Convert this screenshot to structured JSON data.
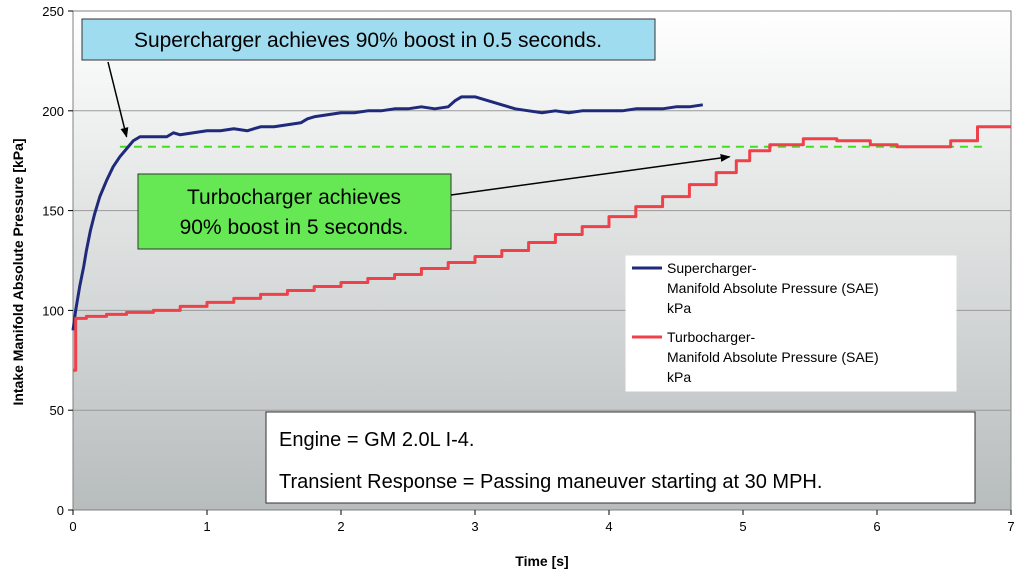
{
  "chart_data": {
    "type": "line",
    "xlabel": "Time [s]",
    "ylabel": "Intake Manifold Absolute Pressure [kPa]",
    "xlim": [
      0,
      7
    ],
    "ylim": [
      0,
      250
    ],
    "xticks": [
      0,
      1,
      2,
      3,
      4,
      5,
      6,
      7
    ],
    "yticks": [
      0,
      50,
      100,
      150,
      200,
      250
    ],
    "grid": "horizontal",
    "background": "vertical gradient light gray",
    "series": [
      {
        "name_lines": [
          "Supercharger-",
          "Manifold Absolute Pressure (SAE)",
          "kPa"
        ],
        "color": "#1f2a7a",
        "step": false,
        "points": [
          [
            0.0,
            90
          ],
          [
            0.02,
            100
          ],
          [
            0.05,
            112
          ],
          [
            0.08,
            122
          ],
          [
            0.1,
            130
          ],
          [
            0.13,
            140
          ],
          [
            0.16,
            148
          ],
          [
            0.2,
            157
          ],
          [
            0.25,
            165
          ],
          [
            0.3,
            172
          ],
          [
            0.35,
            177
          ],
          [
            0.4,
            181
          ],
          [
            0.45,
            185
          ],
          [
            0.5,
            187
          ],
          [
            0.6,
            187
          ],
          [
            0.7,
            187
          ],
          [
            0.75,
            189
          ],
          [
            0.8,
            188
          ],
          [
            0.9,
            189
          ],
          [
            1.0,
            190
          ],
          [
            1.1,
            190
          ],
          [
            1.2,
            191
          ],
          [
            1.3,
            190
          ],
          [
            1.4,
            192
          ],
          [
            1.5,
            192
          ],
          [
            1.6,
            193
          ],
          [
            1.7,
            194
          ],
          [
            1.75,
            196
          ],
          [
            1.8,
            197
          ],
          [
            1.9,
            198
          ],
          [
            2.0,
            199
          ],
          [
            2.1,
            199
          ],
          [
            2.2,
            200
          ],
          [
            2.3,
            200
          ],
          [
            2.4,
            201
          ],
          [
            2.5,
            201
          ],
          [
            2.6,
            202
          ],
          [
            2.7,
            201
          ],
          [
            2.8,
            202
          ],
          [
            2.85,
            205
          ],
          [
            2.9,
            207
          ],
          [
            3.0,
            207
          ],
          [
            3.1,
            205
          ],
          [
            3.2,
            203
          ],
          [
            3.3,
            201
          ],
          [
            3.4,
            200
          ],
          [
            3.5,
            199
          ],
          [
            3.6,
            200
          ],
          [
            3.7,
            199
          ],
          [
            3.8,
            200
          ],
          [
            3.9,
            200
          ],
          [
            4.0,
            200
          ],
          [
            4.1,
            200
          ],
          [
            4.2,
            201
          ],
          [
            4.3,
            201
          ],
          [
            4.4,
            201
          ],
          [
            4.5,
            202
          ],
          [
            4.6,
            202
          ],
          [
            4.7,
            203
          ]
        ]
      },
      {
        "name_lines": [
          "Turbocharger-",
          "Manifold Absolute Pressure (SAE)",
          "kPa"
        ],
        "color": "#f0404a",
        "step": true,
        "points": [
          [
            0.0,
            70
          ],
          [
            0.02,
            96
          ],
          [
            0.1,
            97
          ],
          [
            0.25,
            98
          ],
          [
            0.4,
            99
          ],
          [
            0.6,
            100
          ],
          [
            0.8,
            102
          ],
          [
            1.0,
            104
          ],
          [
            1.2,
            106
          ],
          [
            1.4,
            108
          ],
          [
            1.6,
            110
          ],
          [
            1.8,
            112
          ],
          [
            2.0,
            114
          ],
          [
            2.2,
            116
          ],
          [
            2.4,
            118
          ],
          [
            2.6,
            121
          ],
          [
            2.8,
            124
          ],
          [
            3.0,
            127
          ],
          [
            3.2,
            130
          ],
          [
            3.4,
            134
          ],
          [
            3.6,
            138
          ],
          [
            3.8,
            142
          ],
          [
            4.0,
            147
          ],
          [
            4.2,
            152
          ],
          [
            4.4,
            157
          ],
          [
            4.6,
            163
          ],
          [
            4.8,
            169
          ],
          [
            4.95,
            175
          ],
          [
            5.05,
            180
          ],
          [
            5.2,
            183
          ],
          [
            5.45,
            186
          ],
          [
            5.7,
            185
          ],
          [
            5.95,
            183
          ],
          [
            6.15,
            182
          ],
          [
            6.4,
            182
          ],
          [
            6.55,
            185
          ],
          [
            6.75,
            192
          ],
          [
            7.0,
            192
          ]
        ]
      }
    ],
    "reference_line": {
      "y": 182,
      "x_range": [
        0.35,
        6.8
      ],
      "color": "#44dd22",
      "style": "dashed"
    },
    "annotations": [
      {
        "lines": [
          "Supercharger achieves 90% boost in 0.5 seconds."
        ],
        "fill": "#9fdcf0",
        "arrow_to": [
          0.4,
          187
        ]
      },
      {
        "lines": [
          "Turbocharger achieves",
          "90% boost in 5 seconds."
        ],
        "fill": "#66e855",
        "arrow_to": [
          4.9,
          177
        ]
      }
    ],
    "legend_position": "right",
    "note": {
      "lines": [
        "Engine = GM 2.0L I-4.",
        "Transient Response = Passing maneuver starting at 30 MPH."
      ]
    }
  }
}
